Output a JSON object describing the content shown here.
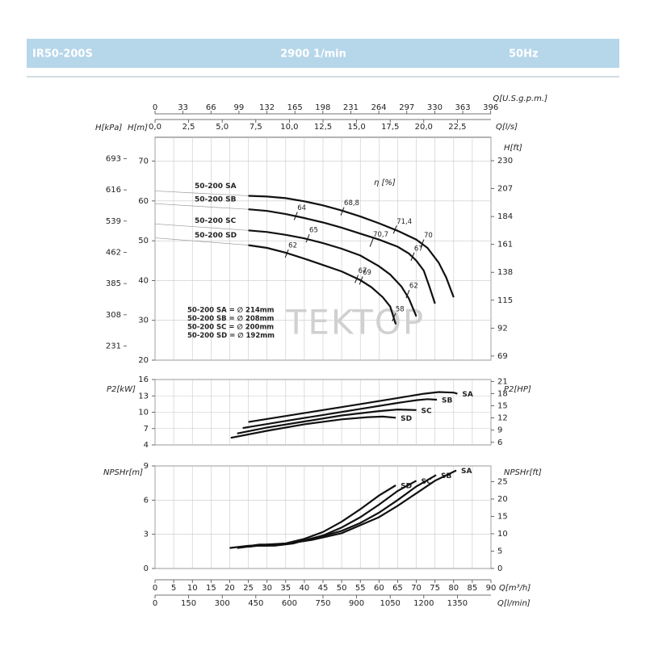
{
  "header": {
    "model": "IR50-200S",
    "speed": "2900 1/min",
    "frequency": "50Hz"
  },
  "chart_data": [
    {
      "type": "line",
      "top_axes": [
        {
          "label": "Q[U.S.g.p.m.]",
          "lim": [
            0,
            396.3
          ],
          "ticks": [
            0,
            33,
            66,
            99,
            132,
            165,
            198,
            231,
            264,
            297,
            330,
            363,
            396
          ]
        },
        {
          "label": "Q[l/s]",
          "lim": [
            0,
            25
          ],
          "ticks": [
            {
              "value": 0,
              "label": "0,0"
            },
            {
              "value": 2.5,
              "label": "2,5"
            },
            {
              "value": 5,
              "label": "5,0"
            },
            {
              "value": 7.5,
              "label": "7,5"
            },
            {
              "value": 10,
              "label": "10,0"
            },
            {
              "value": 12.5,
              "label": "12,5"
            },
            {
              "value": 15,
              "label": "15,0"
            },
            {
              "value": 17.5,
              "label": "17,5"
            },
            {
              "value": 20,
              "label": "20,0"
            },
            {
              "value": 22.5,
              "label": "22,5"
            }
          ]
        }
      ],
      "ylabel": "H[m]",
      "ylim": [
        20,
        76
      ],
      "yticks": [
        20,
        30,
        40,
        50,
        60,
        70
      ],
      "kpa_axis": {
        "label": "H[kPa]",
        "lim": [
          196.2,
          745.6
        ],
        "ticks": [
          231,
          308,
          385,
          462,
          539,
          616,
          693
        ]
      },
      "y2label": "H[ft]",
      "y2lim": [
        65.6,
        249.3
      ],
      "y2ticks": [
        69,
        92,
        115,
        138,
        161,
        184,
        207,
        230
      ],
      "series": [
        {
          "name": "50-200 SA",
          "color": "#111111",
          "x": [
            25,
            30,
            35,
            40,
            45,
            50,
            55,
            60,
            65,
            70,
            73,
            76,
            78,
            80
          ],
          "values": [
            61.3,
            61.1,
            60.7,
            59.9,
            58.9,
            57.6,
            56.1,
            54.4,
            52.5,
            50.3,
            48.2,
            44.5,
            40.8,
            35.8
          ]
        },
        {
          "name": "50-200 SB",
          "color": "#111111",
          "x": [
            25,
            30,
            35,
            40,
            45,
            50,
            55,
            60,
            65,
            68,
            70,
            72,
            73.5,
            75
          ],
          "values": [
            57.9,
            57.5,
            56.7,
            55.7,
            54.6,
            53.3,
            51.8,
            50.3,
            48.5,
            46.8,
            45.0,
            42.5,
            38.5,
            34.2
          ]
        },
        {
          "name": "50-200 SC",
          "color": "#111111",
          "x": [
            25,
            30,
            35,
            40,
            45,
            50,
            55,
            60,
            63,
            66,
            68,
            70
          ],
          "values": [
            52.6,
            52.2,
            51.5,
            50.6,
            49.4,
            48.0,
            46.3,
            43.6,
            41.5,
            38.5,
            35.5,
            31.0
          ]
        },
        {
          "name": "50-200 SD",
          "color": "#111111",
          "x": [
            25,
            30,
            35,
            40,
            45,
            50,
            55,
            58,
            61,
            63,
            64.5
          ],
          "values": [
            48.9,
            48.2,
            47.0,
            45.5,
            43.9,
            42.3,
            40.1,
            38.3,
            35.8,
            33.5,
            29.0
          ]
        }
      ],
      "efficiency_label": "η [%]",
      "efficiency_marks": [
        {
          "label": "64",
          "x": 37.7,
          "y": 56.2
        },
        {
          "label": "68,8",
          "x": 50.2,
          "y": 57.4
        },
        {
          "label": "71,4",
          "x": 64.3,
          "y": 52.8
        },
        {
          "label": "70",
          "x": 71.6,
          "y": 49.3
        },
        {
          "label": "65",
          "x": 40.9,
          "y": 50.6
        },
        {
          "label": "62",
          "x": 35.3,
          "y": 46.8
        },
        {
          "label": "70,7",
          "x": 58.0,
          "y": 49.5
        },
        {
          "label": "67",
          "x": 69.0,
          "y": 46.0
        },
        {
          "label": "69",
          "x": 55.2,
          "y": 40.0
        },
        {
          "label": "67",
          "x": 54.0,
          "y": 40.4
        },
        {
          "label": "62",
          "x": 67.7,
          "y": 36.6
        },
        {
          "label": "58",
          "x": 64.0,
          "y": 30.8
        }
      ],
      "legend_notes": [
        "50-200 SA = ∅ 214mm",
        "50-200 SB = ∅ 208mm",
        "50-200 SC = ∅ 200mm",
        "50-200 SD = ∅ 192mm"
      ],
      "watermark": "TEKTOP"
    },
    {
      "type": "line",
      "ylabel": "P2[kW]",
      "ylim": [
        4,
        16
      ],
      "yticks": [
        4,
        7,
        10,
        13,
        16
      ],
      "y2label": "P2[HP]",
      "y2lim": [
        5.36,
        21.46
      ],
      "y2ticks": [
        6,
        9,
        12,
        15,
        18,
        21
      ],
      "series": [
        {
          "name": "SA",
          "color": "#111111",
          "x": [
            25,
            35,
            45,
            55,
            65,
            72,
            76,
            80,
            81
          ],
          "values": [
            8.2,
            9.3,
            10.4,
            11.5,
            12.6,
            13.4,
            13.7,
            13.6,
            13.4
          ]
        },
        {
          "name": "SB",
          "color": "#111111",
          "x": [
            23.5,
            35,
            45,
            55,
            65,
            70,
            73,
            75.5
          ],
          "values": [
            7.1,
            8.4,
            9.5,
            10.6,
            11.7,
            12.2,
            12.4,
            12.3
          ]
        },
        {
          "name": "SC",
          "color": "#111111",
          "x": [
            22,
            30,
            40,
            50,
            60,
            65,
            70
          ],
          "values": [
            6.1,
            7.2,
            8.3,
            9.4,
            10.2,
            10.5,
            10.4
          ]
        },
        {
          "name": "SD",
          "color": "#111111",
          "x": [
            20.3,
            30,
            40,
            50,
            57,
            61,
            64.5
          ],
          "values": [
            5.3,
            6.6,
            7.8,
            8.7,
            9.1,
            9.2,
            9.0
          ]
        }
      ]
    },
    {
      "type": "line",
      "xlabel": "Q[m³/h]",
      "xlim": [
        0,
        90
      ],
      "xticks": [
        0,
        5,
        10,
        15,
        20,
        25,
        30,
        35,
        40,
        45,
        50,
        55,
        60,
        65,
        70,
        75,
        80,
        85,
        90
      ],
      "x2label": "Q[l/min]",
      "x2lim": [
        0,
        1500
      ],
      "x2ticks": [
        0,
        150,
        300,
        450,
        600,
        750,
        900,
        1050,
        1200,
        1350
      ],
      "ylabel": "NPSHr[m]",
      "ylim": [
        0,
        9
      ],
      "yticks": [
        0,
        3,
        6,
        9
      ],
      "y2label": "NPSHr[ft]",
      "y2lim": [
        0,
        29.53
      ],
      "y2ticks": [
        0,
        5,
        10,
        15,
        20,
        25
      ],
      "series": [
        {
          "name": "SD",
          "color": "#111111",
          "x": [
            20,
            25,
            30,
            35,
            40,
            45,
            50,
            55,
            60,
            64.5
          ],
          "values": [
            1.8,
            2.0,
            2.0,
            2.2,
            2.6,
            3.2,
            4.1,
            5.2,
            6.4,
            7.3
          ]
        },
        {
          "name": "SC",
          "color": "#111111",
          "x": [
            22,
            27,
            32,
            37,
            45,
            50,
            55,
            60,
            65,
            70
          ],
          "values": [
            1.8,
            2.0,
            2.0,
            2.2,
            2.9,
            3.6,
            4.5,
            5.6,
            6.8,
            7.7
          ]
        },
        {
          "name": "SB",
          "color": "#111111",
          "x": [
            23.5,
            28,
            33,
            40,
            50,
            55,
            60,
            65,
            70,
            75.3
          ],
          "values": [
            1.9,
            2.1,
            2.1,
            2.4,
            3.3,
            4.0,
            4.9,
            6.0,
            7.2,
            8.2
          ]
        },
        {
          "name": "SA",
          "color": "#111111",
          "x": [
            25,
            30,
            35,
            42,
            50,
            60,
            65,
            70,
            75,
            80.7
          ],
          "values": [
            1.9,
            2.1,
            2.2,
            2.5,
            3.1,
            4.5,
            5.5,
            6.6,
            7.7,
            8.6
          ]
        }
      ]
    }
  ]
}
